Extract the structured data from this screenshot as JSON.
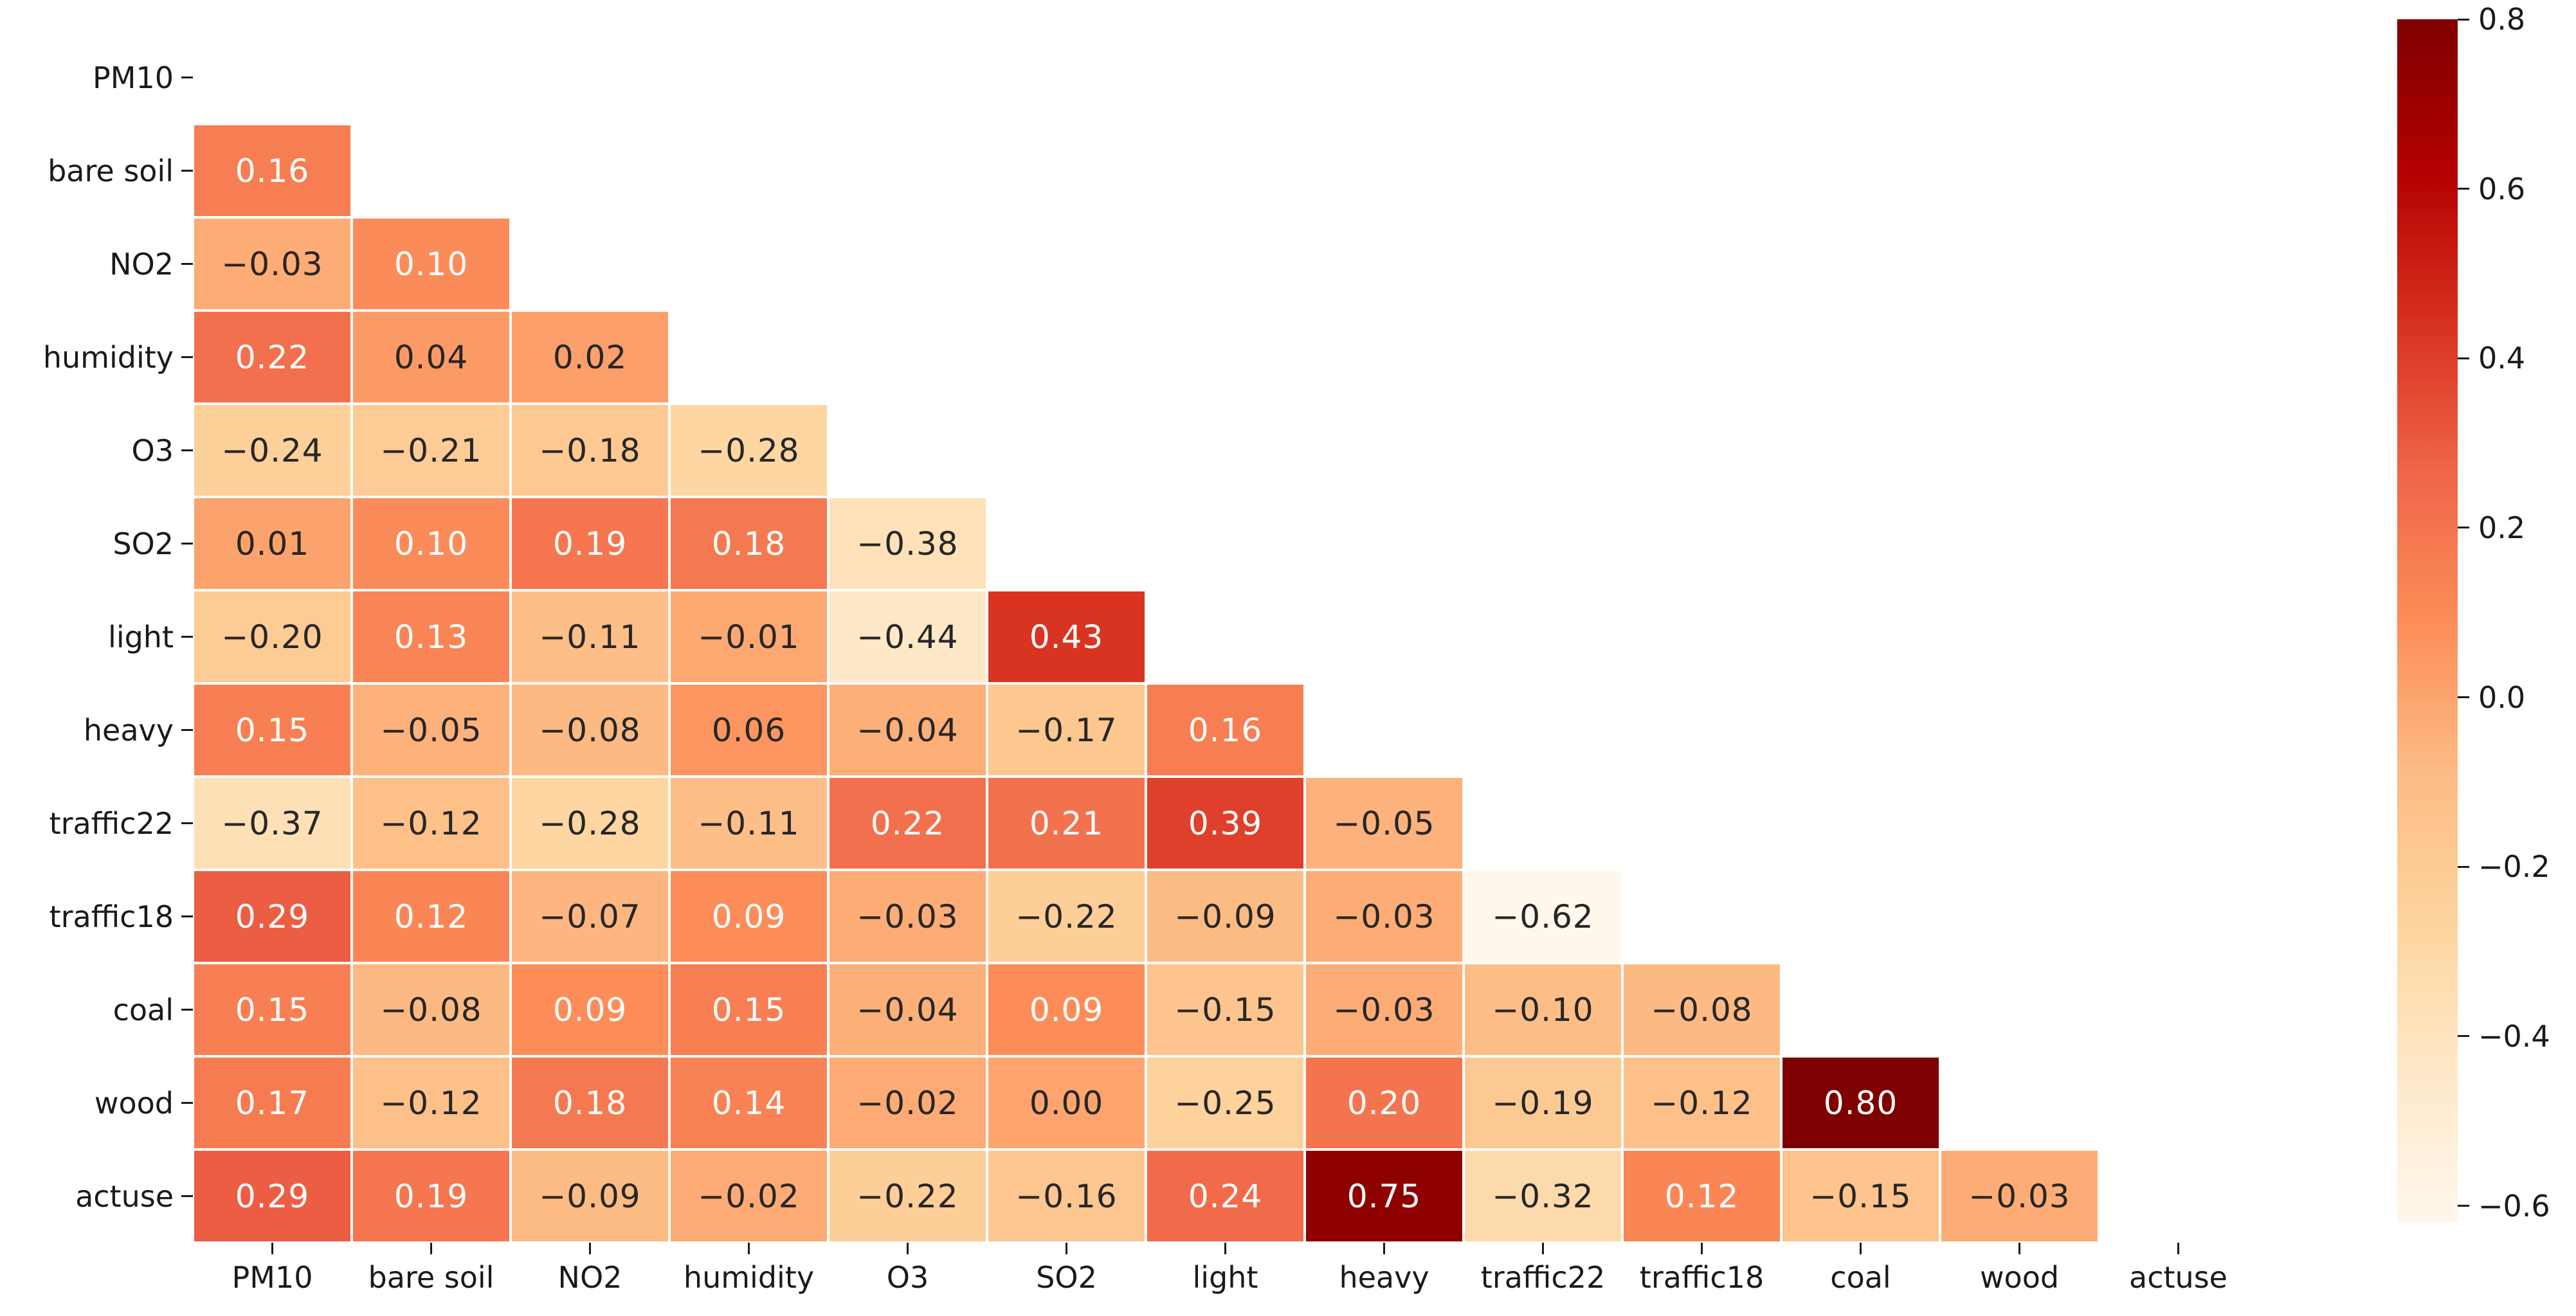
{
  "figure": {
    "background_color": "#ffffff",
    "title": ""
  },
  "chart_data": {
    "type": "heatmap",
    "subtype": "correlation-matrix-lower-triangle",
    "mask": "upper-triangle-and-diagonal-blank",
    "categories": [
      "PM10",
      "bare soil",
      "NO2",
      "humidity",
      "O3",
      "SO2",
      "light",
      "heavy",
      "traffic22",
      "traffic18",
      "coal",
      "wood",
      "actuse"
    ],
    "x_tick_labels": [
      "PM10",
      "bare soil",
      "NO2",
      "humidity",
      "O3",
      "SO2",
      "light",
      "heavy",
      "traffic22",
      "traffic18",
      "coal",
      "wood",
      "actuse"
    ],
    "y_tick_labels": [
      "PM10",
      "bare soil",
      "NO2",
      "humidity",
      "O3",
      "SO2",
      "light",
      "heavy",
      "traffic22",
      "traffic18",
      "coal",
      "wood",
      "actuse"
    ],
    "matrix": [
      [],
      [
        0.16
      ],
      [
        -0.03,
        0.1
      ],
      [
        0.22,
        0.04,
        0.02
      ],
      [
        -0.24,
        -0.21,
        -0.18,
        -0.28
      ],
      [
        0.01,
        0.1,
        0.19,
        0.18,
        -0.38
      ],
      [
        -0.2,
        0.13,
        -0.11,
        -0.01,
        -0.44,
        0.43
      ],
      [
        0.15,
        -0.05,
        -0.08,
        0.06,
        -0.04,
        -0.17,
        0.16
      ],
      [
        -0.37,
        -0.12,
        -0.28,
        -0.11,
        0.22,
        0.21,
        0.39,
        -0.05
      ],
      [
        0.29,
        0.12,
        -0.07,
        0.09,
        -0.03,
        -0.22,
        -0.09,
        -0.03,
        -0.62
      ],
      [
        0.15,
        -0.08,
        0.09,
        0.15,
        -0.04,
        0.09,
        -0.15,
        -0.03,
        -0.1,
        -0.08
      ],
      [
        0.17,
        -0.12,
        0.18,
        0.14,
        -0.02,
        0.0,
        -0.25,
        0.2,
        -0.19,
        -0.12,
        0.8
      ],
      [
        0.29,
        0.19,
        -0.09,
        -0.02,
        -0.22,
        -0.16,
        0.24,
        0.75,
        -0.32,
        0.12,
        -0.15,
        -0.03
      ]
    ],
    "vmin": -0.62,
    "vmax": 0.8,
    "colormap": {
      "name": "OrRd",
      "anchors": [
        "#fff7ec",
        "#fee8c8",
        "#fdd49e",
        "#fdbb84",
        "#fc8d59",
        "#ef6548",
        "#d7301f",
        "#b30000",
        "#7f0000"
      ]
    },
    "colorbar": {
      "position": "right",
      "ticks": [
        0.8,
        0.6,
        0.4,
        0.2,
        0.0,
        -0.2,
        -0.4,
        -0.6
      ]
    },
    "annotations": {
      "visible": true,
      "decimals": 2,
      "minus_sign": "−",
      "dark_text_color": "#262626",
      "light_text_color": "#ffffff",
      "luminance_threshold": 0.408
    },
    "grid_line_color": "#ffffff",
    "axis_text_color": "#1a1a1a",
    "legend_position": "right-colorbar"
  }
}
